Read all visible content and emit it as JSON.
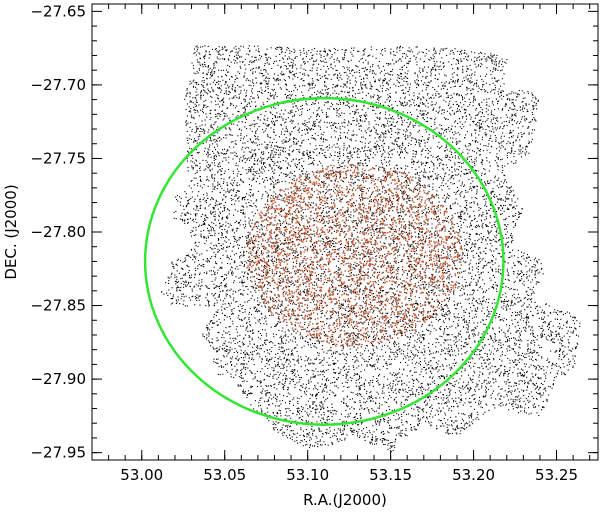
{
  "chart_data": {
    "type": "scatter",
    "xlabel": "R.A.(J2000)",
    "ylabel": "DEC.  (J2000)",
    "xlim": [
      52.97,
      53.275
    ],
    "ylim": [
      -27.955,
      -27.645
    ],
    "x_ticks": [
      {
        "value": 53.0,
        "label": "53.00"
      },
      {
        "value": 53.05,
        "label": "53.05"
      },
      {
        "value": 53.1,
        "label": "53.10"
      },
      {
        "value": 53.15,
        "label": "53.15"
      },
      {
        "value": 53.2,
        "label": "53.20"
      },
      {
        "value": 53.25,
        "label": "53.25"
      }
    ],
    "y_ticks": [
      {
        "value": -27.65,
        "label": "−27.65"
      },
      {
        "value": -27.7,
        "label": "−27.70"
      },
      {
        "value": -27.75,
        "label": "−27.75"
      },
      {
        "value": -27.8,
        "label": "−27.80"
      },
      {
        "value": -27.85,
        "label": "−27.85"
      },
      {
        "value": -27.9,
        "label": "−27.90"
      },
      {
        "value": -27.95,
        "label": "−27.95"
      }
    ],
    "series": [
      {
        "role": "background sources",
        "color": "#000000",
        "point_count_approx": 12000,
        "footprint_polygon": [
          [
            53.03,
            -27.673
          ],
          [
            53.07,
            -27.673
          ],
          [
            53.11,
            -27.675
          ],
          [
            53.15,
            -27.673
          ],
          [
            53.19,
            -27.675
          ],
          [
            53.22,
            -27.68
          ],
          [
            53.218,
            -27.7
          ],
          [
            53.24,
            -27.705
          ],
          [
            53.235,
            -27.745
          ],
          [
            53.218,
            -27.76
          ],
          [
            53.23,
            -27.783
          ],
          [
            53.222,
            -27.81
          ],
          [
            53.245,
            -27.82
          ],
          [
            53.235,
            -27.845
          ],
          [
            53.265,
            -27.857
          ],
          [
            53.26,
            -27.895
          ],
          [
            53.25,
            -27.9
          ],
          [
            53.24,
            -27.925
          ],
          [
            53.21,
            -27.92
          ],
          [
            53.19,
            -27.94
          ],
          [
            53.17,
            -27.93
          ],
          [
            53.15,
            -27.95
          ],
          [
            53.13,
            -27.94
          ],
          [
            53.1,
            -27.948
          ],
          [
            53.08,
            -27.935
          ],
          [
            53.07,
            -27.925
          ],
          [
            53.055,
            -27.9
          ],
          [
            53.045,
            -27.9
          ],
          [
            53.04,
            -27.875
          ],
          [
            53.035,
            -27.87
          ],
          [
            53.045,
            -27.85
          ],
          [
            53.018,
            -27.85
          ],
          [
            53.01,
            -27.84
          ],
          [
            53.018,
            -27.82
          ],
          [
            53.03,
            -27.81
          ],
          [
            53.028,
            -27.795
          ],
          [
            53.018,
            -27.79
          ],
          [
            53.02,
            -27.775
          ],
          [
            53.028,
            -27.77
          ],
          [
            53.025,
            -27.71
          ],
          [
            53.03,
            -27.69
          ]
        ]
      },
      {
        "role": "inner sample",
        "color": "#c0522b",
        "point_count_approx": 2600,
        "region": {
          "type": "ellipse",
          "center": [
            53.128,
            -27.815
          ],
          "ra_semi_axis": 0.065,
          "dec_semi_axis": 0.062
        }
      }
    ],
    "annotations": [
      {
        "type": "circle",
        "color": "#33e633",
        "center": [
          53.11,
          -27.82
        ],
        "ra_semi_axis": 0.108,
        "dec_semi_axis": 0.111
      }
    ],
    "grid": false,
    "legend": "none"
  }
}
